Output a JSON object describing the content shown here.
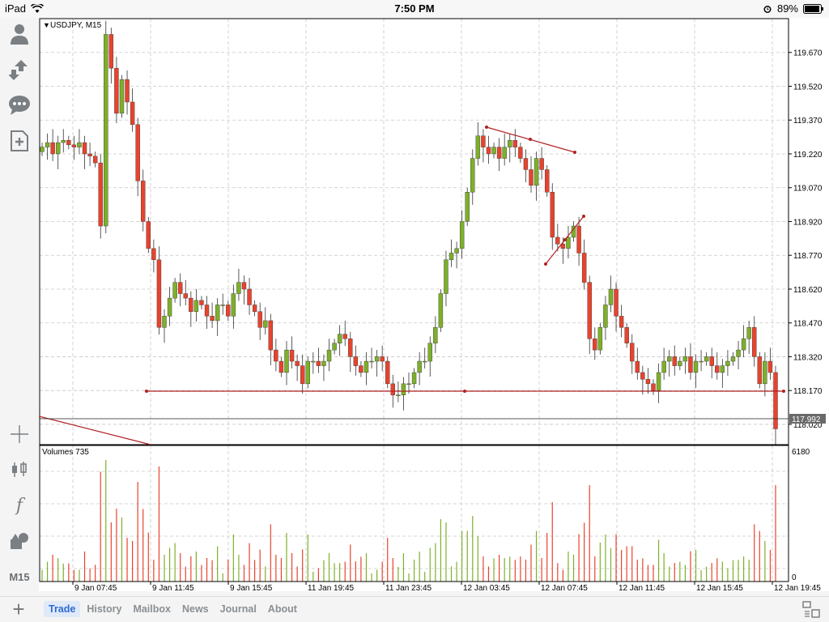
{
  "status_bar": {
    "device": "iPad",
    "time": "7:50 PM",
    "battery": "89%"
  },
  "chart": {
    "symbol_label": "USDJPY, M15",
    "current_price": "117.992",
    "price_ticks": [
      "119.670",
      "119.520",
      "119.370",
      "119.220",
      "119.070",
      "118.920",
      "118.770",
      "118.620",
      "118.470",
      "118.320",
      "118.170",
      "118.020"
    ],
    "time_ticks": [
      "9 Jan 07:45",
      "9 Jan 11:45",
      "9 Jan 15:45",
      "11 Jan 19:45",
      "11 Jan 23:45",
      "12 Jan 03:45",
      "12 Jan 07:45",
      "12 Jan 11:45",
      "12 Jan 15:45",
      "12 Jan 19:45"
    ],
    "volume_label": "Volumes 735",
    "volume_max": "6180",
    "volume_min": "0",
    "colors": {
      "bull": "#7db02a",
      "bear": "#e8432d",
      "line": "#b22222",
      "grid": "#c8c8c8"
    }
  },
  "toolbar": {
    "timeframe": "M15"
  },
  "tabs": [
    "Trade",
    "History",
    "Mailbox",
    "News",
    "Journal",
    "About"
  ],
  "chart_data": {
    "type": "candlestick",
    "title": "USDJPY, M15",
    "ylim": [
      117.93,
      119.82
    ],
    "closes": [
      119.25,
      119.27,
      119.22,
      119.27,
      119.28,
      119.26,
      119.25,
      119.27,
      119.22,
      119.21,
      119.18,
      118.9,
      119.75,
      119.6,
      119.4,
      119.55,
      119.45,
      119.35,
      119.1,
      118.92,
      118.8,
      118.75,
      118.45,
      118.5,
      118.58,
      118.65,
      118.6,
      118.58,
      118.52,
      118.57,
      118.55,
      118.5,
      118.48,
      118.55,
      118.55,
      118.5,
      118.6,
      118.65,
      118.62,
      118.55,
      118.52,
      118.45,
      118.48,
      118.35,
      118.3,
      118.25,
      118.35,
      118.3,
      118.28,
      118.2,
      118.3,
      118.3,
      118.28,
      118.3,
      118.35,
      118.38,
      118.42,
      118.4,
      118.32,
      118.28,
      118.25,
      118.3,
      118.3,
      118.32,
      118.3,
      118.2,
      118.15,
      118.15,
      118.2,
      118.2,
      118.25,
      118.3,
      118.3,
      118.38,
      118.45,
      118.6,
      118.75,
      118.78,
      118.8,
      118.92,
      119.05,
      119.2,
      119.3,
      119.25,
      119.22,
      119.25,
      119.2,
      119.25,
      119.28,
      119.25,
      119.2,
      119.15,
      119.08,
      119.2,
      119.15,
      119.05,
      118.85,
      118.82,
      118.8,
      118.85,
      118.9,
      118.78,
      118.65,
      118.4,
      118.35,
      118.45,
      118.55,
      118.62,
      118.5,
      118.45,
      118.38,
      118.3,
      118.25,
      118.22,
      118.2,
      118.17,
      118.25,
      118.3,
      118.32,
      118.28,
      118.3,
      118.32,
      118.25,
      118.3,
      118.3,
      118.32,
      118.28,
      118.25,
      118.28,
      118.3,
      118.32,
      118.35,
      118.4,
      118.45,
      118.32,
      118.2,
      118.3,
      118.25,
      118.0
    ],
    "horizontal_level": 118.12,
    "volume_max": 6180,
    "x_categories": [
      "9 Jan 07:45",
      "9 Jan 11:45",
      "9 Jan 15:45",
      "11 Jan 19:45",
      "11 Jan 23:45",
      "12 Jan 03:45",
      "12 Jan 07:45",
      "12 Jan 11:45",
      "12 Jan 15:45",
      "12 Jan 19:45"
    ]
  }
}
